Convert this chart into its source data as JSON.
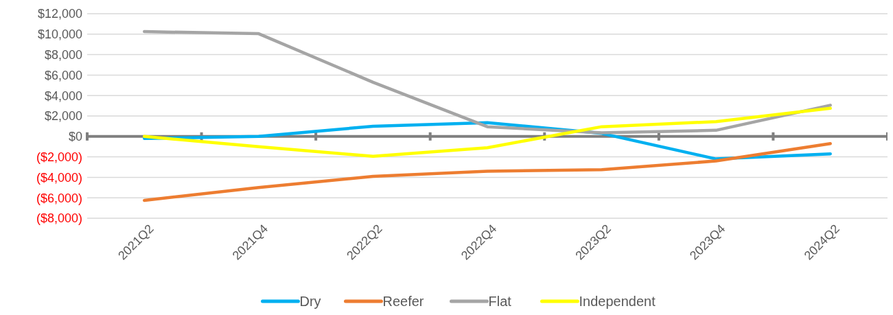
{
  "chart_data": {
    "type": "line",
    "categories": [
      "2021Q2",
      "2021Q4",
      "2022Q2",
      "2022Q4",
      "2023Q2",
      "2023Q4",
      "2024Q2"
    ],
    "series": [
      {
        "name": "Dry",
        "color": "#00b0f0",
        "values": [
          -200,
          0,
          1000,
          1350,
          300,
          -2200,
          -1700
        ]
      },
      {
        "name": "Reefer",
        "color": "#ed7d31",
        "values": [
          -6250,
          -5000,
          -3900,
          -3400,
          -3250,
          -2400,
          -700
        ]
      },
      {
        "name": "Flat",
        "color": "#a5a5a5",
        "values": [
          10250,
          10050,
          5300,
          950,
          350,
          600,
          3050
        ]
      },
      {
        "name": "Independent",
        "color": "#ffff00",
        "values": [
          0,
          -1000,
          -1950,
          -1100,
          950,
          1450,
          2750
        ]
      }
    ],
    "ylim": [
      -8000,
      12000
    ],
    "yticks": [
      {
        "value": -8000,
        "label": "($8,000)"
      },
      {
        "value": -6000,
        "label": "($6,000)"
      },
      {
        "value": -4000,
        "label": "($4,000)"
      },
      {
        "value": -2000,
        "label": "($2,000)"
      },
      {
        "value": 0,
        "label": "$0"
      },
      {
        "value": 2000,
        "label": "$2,000"
      },
      {
        "value": 4000,
        "label": "$4,000"
      },
      {
        "value": 6000,
        "label": "$6,000"
      },
      {
        "value": 8000,
        "label": "$8,000"
      },
      {
        "value": 10000,
        "label": "$10,000"
      },
      {
        "value": 12000,
        "label": "$12,000"
      }
    ],
    "grid": "y",
    "legend": "bottom",
    "marker": "none",
    "line_style": "solid"
  }
}
